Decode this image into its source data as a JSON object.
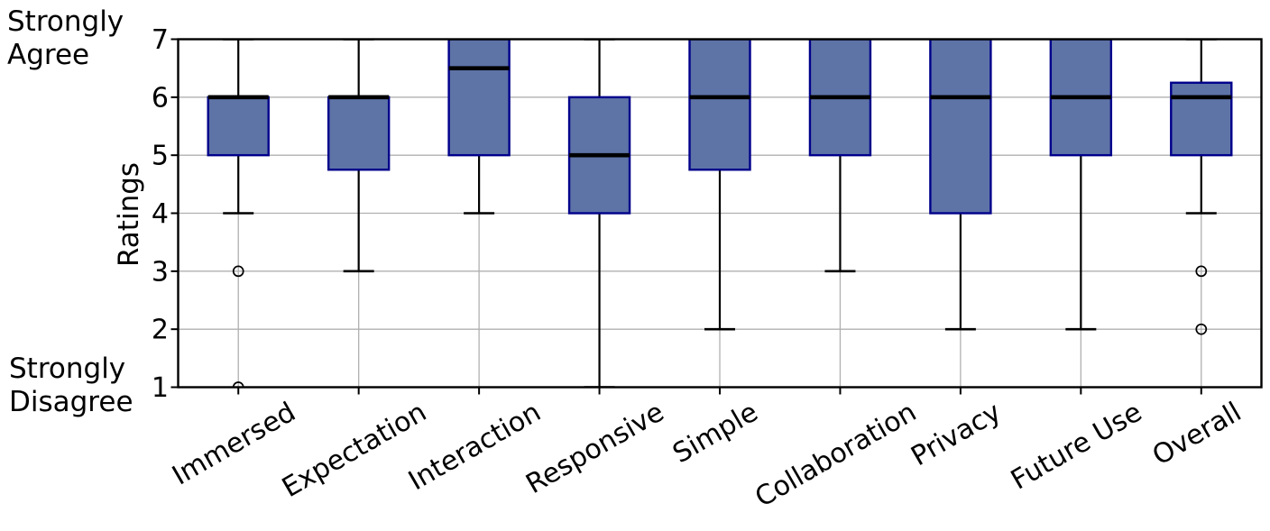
{
  "chart_data": {
    "type": "boxplot",
    "title": "",
    "ylabel": "Ratings",
    "y_annotations": {
      "top_lines": [
        "Strongly",
        "Agree"
      ],
      "bottom_lines": [
        "Strongly",
        "Disagree"
      ]
    },
    "yticks": [
      1,
      2,
      3,
      4,
      5,
      6,
      7
    ],
    "ylim": [
      1,
      7
    ],
    "grid": true,
    "legend": "none",
    "categories": [
      "Immersed",
      "Expectation",
      "Interaction",
      "Responsive",
      "Simple",
      "Collaboration",
      "Privacy",
      "Future Use",
      "Overall"
    ],
    "series": [
      {
        "category": "Immersed",
        "whisker_low": 4,
        "q1": 5,
        "median": 6,
        "q3": 6,
        "whisker_high": 7,
        "outliers": [
          3,
          1
        ]
      },
      {
        "category": "Expectation",
        "whisker_low": 3,
        "q1": 4.75,
        "median": 6,
        "q3": 6,
        "whisker_high": 7,
        "outliers": []
      },
      {
        "category": "Interaction",
        "whisker_low": 4,
        "q1": 5,
        "median": 6.5,
        "q3": 7,
        "whisker_high": 7,
        "outliers": []
      },
      {
        "category": "Responsive",
        "whisker_low": 1,
        "q1": 4,
        "median": 5,
        "q3": 6,
        "whisker_high": 7,
        "outliers": []
      },
      {
        "category": "Simple",
        "whisker_low": 2,
        "q1": 4.75,
        "median": 6,
        "q3": 7,
        "whisker_high": 7,
        "outliers": []
      },
      {
        "category": "Collaboration",
        "whisker_low": 3,
        "q1": 5,
        "median": 6,
        "q3": 7,
        "whisker_high": 7,
        "outliers": []
      },
      {
        "category": "Privacy",
        "whisker_low": 2,
        "q1": 4,
        "median": 6,
        "q3": 7,
        "whisker_high": 7,
        "outliers": []
      },
      {
        "category": "Future Use",
        "whisker_low": 2,
        "q1": 5,
        "median": 6,
        "q3": 7,
        "whisker_high": 7,
        "outliers": []
      },
      {
        "category": "Overall",
        "whisker_low": 4,
        "q1": 5,
        "median": 6,
        "q3": 6.25,
        "whisker_high": 7,
        "outliers": [
          3,
          2
        ]
      }
    ],
    "colors": {
      "box_fill": "#5e73a6",
      "box_edge": "#00008b",
      "median": "#000000",
      "whisker": "#000000",
      "grid": "#b0b0b0",
      "axis": "#000000",
      "background": "#ffffff"
    }
  }
}
